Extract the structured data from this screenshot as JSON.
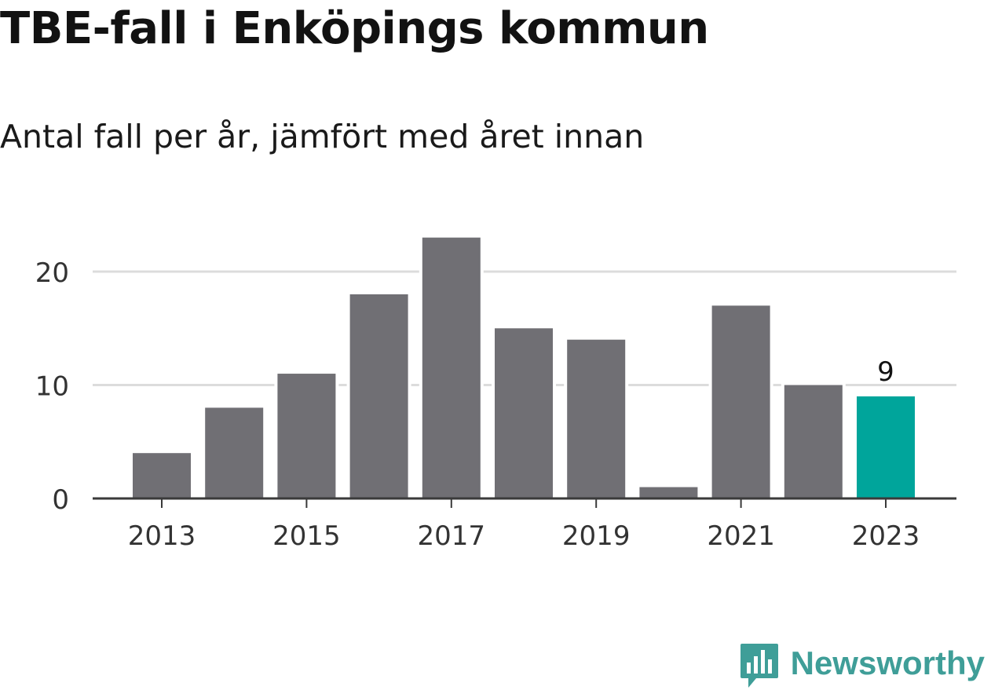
{
  "title": "TBE-fall i Enköpings kommun",
  "subtitle": "Antal fall per år, jämfört med året innan",
  "brand": "Newsworthy",
  "colors": {
    "bar": "#706f74",
    "highlight": "#00a59b",
    "grid": "#dcdcdc",
    "axis": "#3a3a3a",
    "brand": "#3f9e98"
  },
  "chart_data": {
    "type": "bar",
    "categories": [
      "2013",
      "2014",
      "2015",
      "2016",
      "2017",
      "2018",
      "2019",
      "2020",
      "2021",
      "2022",
      "2023"
    ],
    "values": [
      4,
      8,
      11,
      18,
      23,
      15,
      14,
      1,
      17,
      10,
      9
    ],
    "x_tick_labels": [
      "2013",
      "2015",
      "2017",
      "2019",
      "2021",
      "2023"
    ],
    "y_ticks": [
      0,
      10,
      20
    ],
    "ylim": [
      0,
      25
    ],
    "highlight_index": 10,
    "data_labels": [
      {
        "index": 10,
        "text": "9"
      }
    ],
    "grid": true
  }
}
